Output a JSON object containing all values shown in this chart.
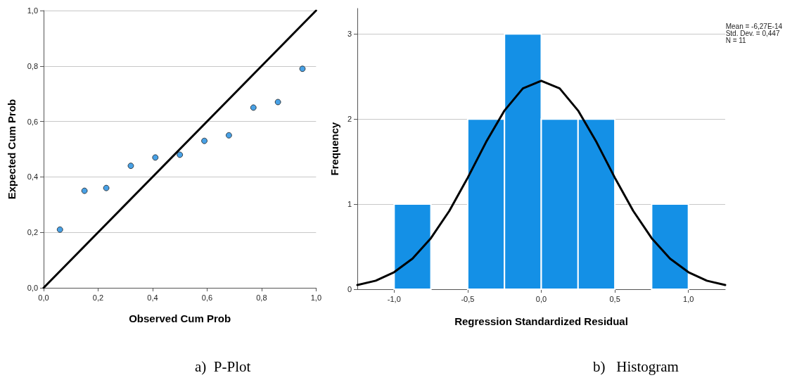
{
  "chart_data": [
    {
      "type": "scatter",
      "title": "a)  P-Plot",
      "xlabel": "Observed Cum Prob",
      "ylabel": "Expected Cum Prob",
      "xlim": [
        0,
        1
      ],
      "ylim": [
        0,
        1
      ],
      "xticks": [
        {
          "value": 0,
          "label": "0,0"
        },
        {
          "value": 0.2,
          "label": "0,2"
        },
        {
          "value": 0.4,
          "label": "0,4"
        },
        {
          "value": 0.6,
          "label": "0,6"
        },
        {
          "value": 0.8,
          "label": "0,8"
        },
        {
          "value": 1,
          "label": "1,0"
        }
      ],
      "yticks": [
        {
          "value": 0,
          "label": "0,0"
        },
        {
          "value": 0.2,
          "label": "0,2"
        },
        {
          "value": 0.4,
          "label": "0,4"
        },
        {
          "value": 0.6,
          "label": "0,6"
        },
        {
          "value": 0.8,
          "label": "0,8"
        },
        {
          "value": 1,
          "label": "1,0"
        }
      ],
      "grid": "y",
      "series": [
        {
          "marker": "circle",
          "color": "#1a8ae0",
          "x": [
            0.06,
            0.15,
            0.23,
            0.32,
            0.41,
            0.5,
            0.59,
            0.68,
            0.77,
            0.86,
            0.95
          ],
          "values": [
            0.21,
            0.35,
            0.36,
            0.44,
            0.47,
            0.48,
            0.53,
            0.55,
            0.65,
            0.67,
            0.79
          ]
        },
        {
          "type": "line",
          "marker": "none",
          "line_style": "solid",
          "color": "#000000",
          "x": [
            0,
            1
          ],
          "values": [
            0,
            1
          ]
        }
      ]
    },
    {
      "type": "histogram",
      "title": "b)   Histogram",
      "xlabel": "Regression Standardized Residual",
      "ylabel": "Frequency",
      "xlim": [
        -1.25,
        1.25
      ],
      "ylim": [
        0,
        3.3
      ],
      "xticks": [
        {
          "value": -1,
          "label": "-1,0"
        },
        {
          "value": -0.5,
          "label": "-0,5"
        },
        {
          "value": 0,
          "label": "0,0"
        },
        {
          "value": 0.5,
          "label": "0,5"
        },
        {
          "value": 1,
          "label": "1,0"
        }
      ],
      "yticks": [
        0,
        1,
        2,
        3
      ],
      "grid": "y",
      "annotations": [
        "Mean = -6,27E-14",
        "Std. Dev. = 0,447",
        "N = 11"
      ],
      "series": [
        {
          "color": "#1490e6",
          "bins": [
            -1,
            -0.75,
            -0.5,
            -0.25,
            0,
            0.25,
            0.5,
            0.75,
            1
          ],
          "values": [
            1,
            0,
            2,
            3,
            2,
            2,
            0,
            1
          ]
        },
        {
          "type": "line",
          "marker": "none",
          "line_style": "solid",
          "color": "#000000",
          "x": [
            -1.25,
            -1.125,
            -1,
            -0.875,
            -0.75,
            -0.625,
            -0.5,
            -0.375,
            -0.25,
            -0.125,
            0,
            0.125,
            0.25,
            0.375,
            0.5,
            0.625,
            0.75,
            0.875,
            1,
            1.125,
            1.25
          ],
          "values": [
            0.05,
            0.1,
            0.2,
            0.36,
            0.6,
            0.92,
            1.31,
            1.73,
            2.1,
            2.36,
            2.45,
            2.36,
            2.1,
            1.73,
            1.31,
            0.92,
            0.6,
            0.36,
            0.2,
            0.1,
            0.05
          ]
        }
      ]
    }
  ]
}
